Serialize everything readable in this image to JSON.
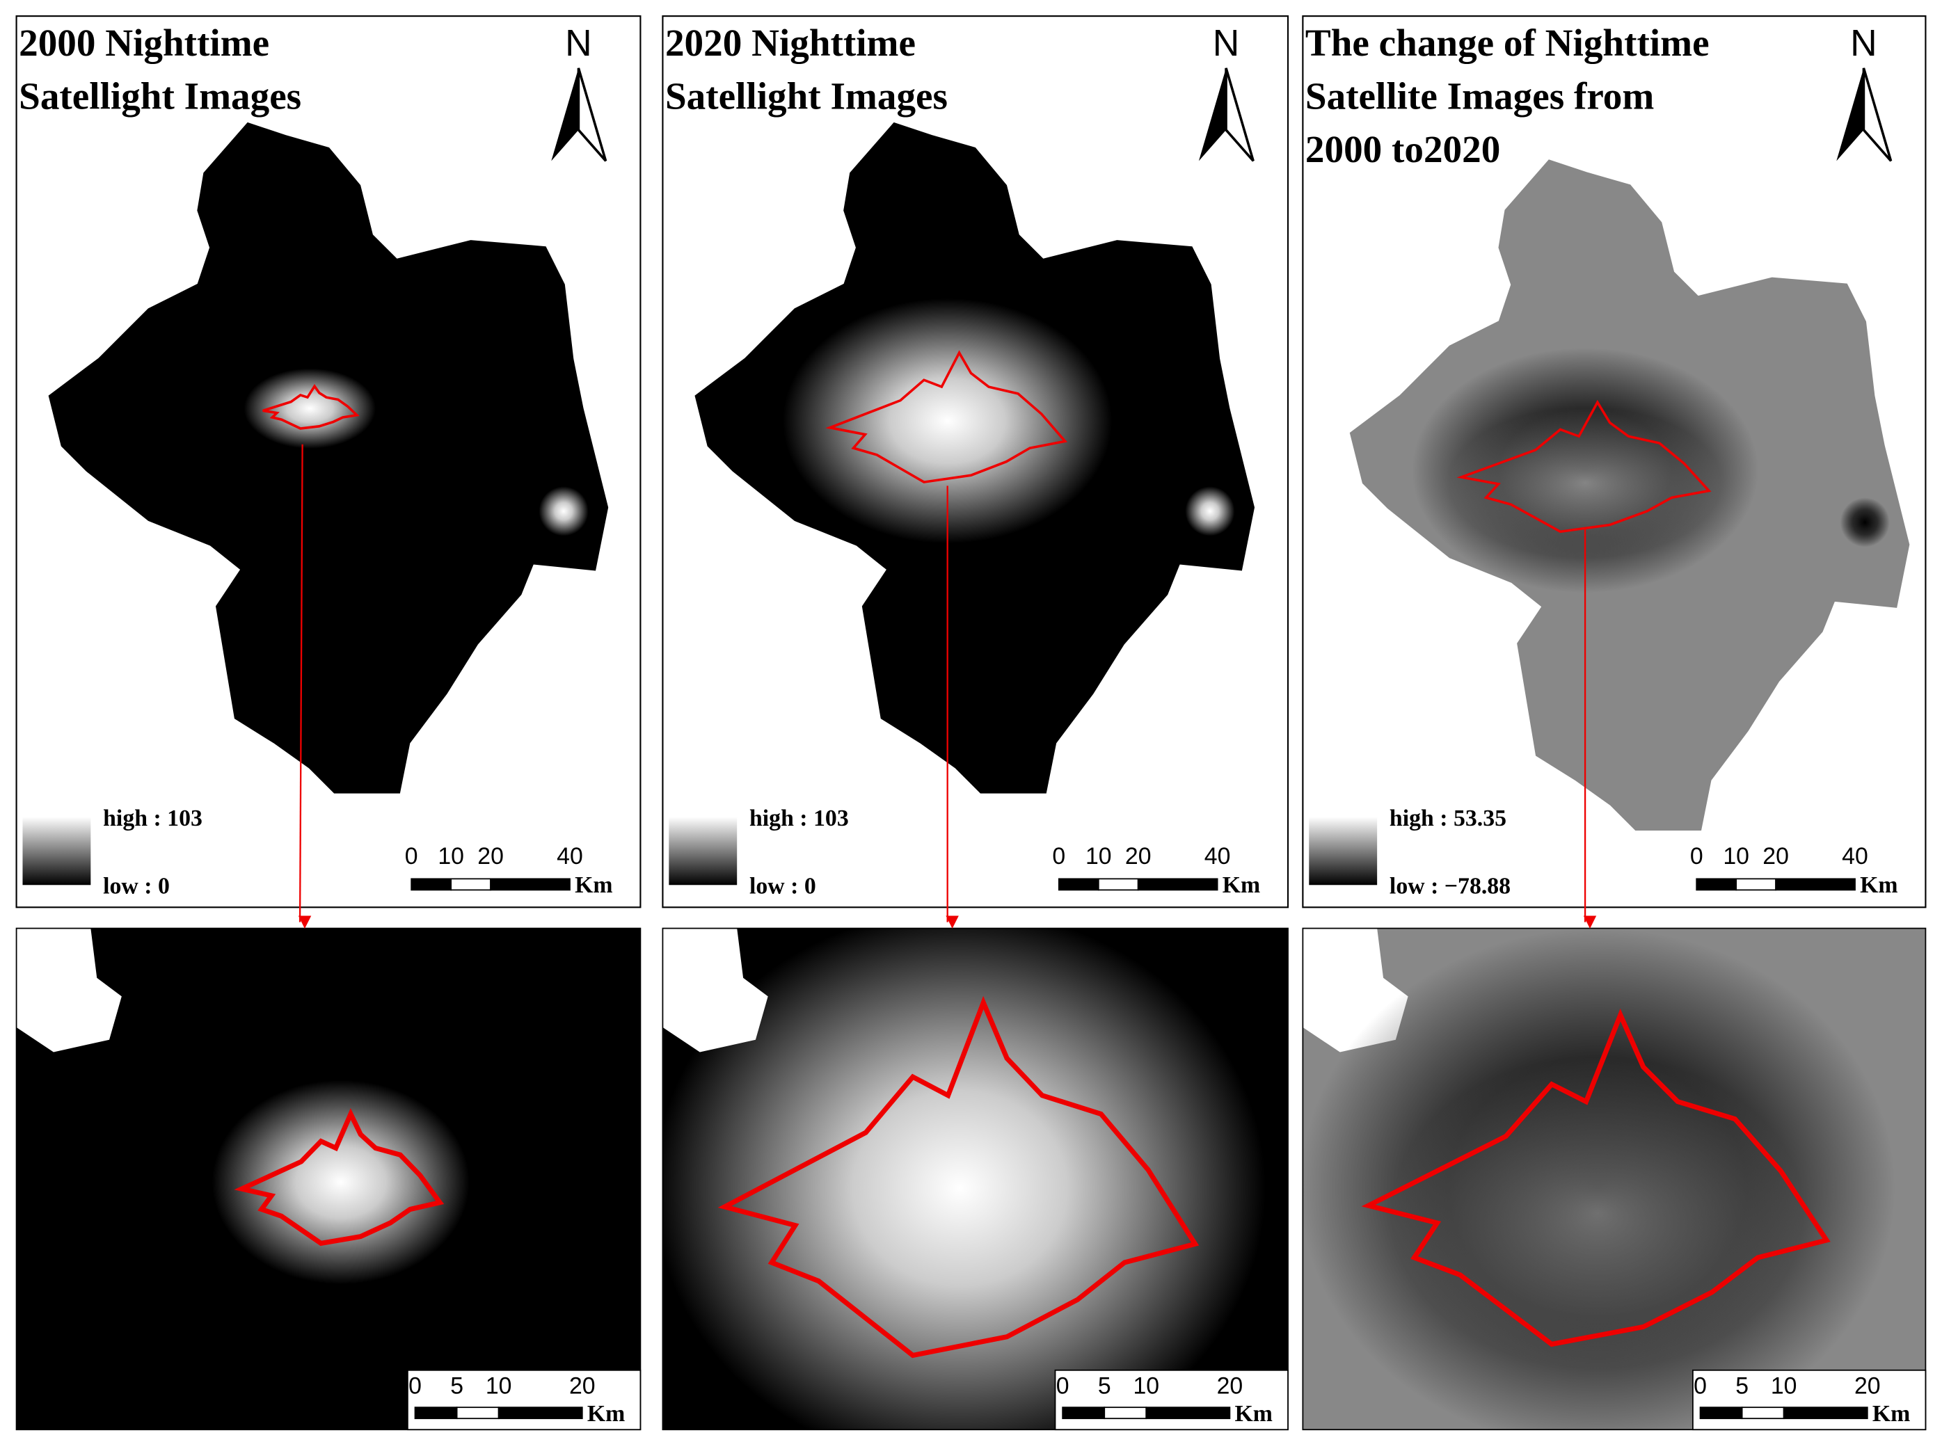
{
  "panels": [
    {
      "title_lines": [
        "2000 Nighttime",
        "Satellight  Images"
      ],
      "north": "N",
      "legend": {
        "high": "high : 103",
        "low": "low : 0"
      },
      "scale": {
        "ticks": [
          "0",
          "10",
          "20",
          "40"
        ],
        "unit": "Km"
      },
      "inset_scale": {
        "ticks": [
          "0",
          "5",
          "10",
          "20"
        ],
        "unit": "Km"
      }
    },
    {
      "title_lines": [
        "2020 Nighttime",
        "Satellight  Images"
      ],
      "north": "N",
      "legend": {
        "high": "high : 103",
        "low": "low : 0"
      },
      "scale": {
        "ticks": [
          "0",
          "10",
          "20",
          "40"
        ],
        "unit": "Km"
      },
      "inset_scale": {
        "ticks": [
          "0",
          "5",
          "10",
          "20"
        ],
        "unit": "Km"
      }
    },
    {
      "title_lines": [
        "The change of Nighttime",
        "Satellite Images from",
        "2000 to2020"
      ],
      "north": "N",
      "legend": {
        "high": "high : 53.35",
        "low": "low : −78.88"
      },
      "scale": {
        "ticks": [
          "0",
          "10",
          "20",
          "40"
        ],
        "unit": "Km"
      },
      "inset_scale": {
        "ticks": [
          "0",
          "5",
          "10",
          "20"
        ],
        "unit": "Km"
      }
    }
  ]
}
